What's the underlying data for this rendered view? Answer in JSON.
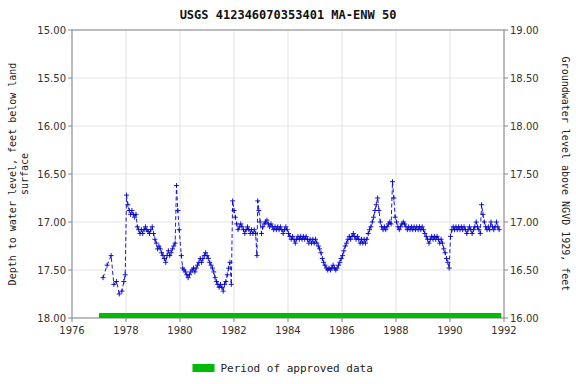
{
  "chart_data": {
    "type": "line",
    "title": "USGS 412346070353401 MA-ENW   50",
    "ylabel": "Depth to water level, feet below land\nsurface",
    "y2label": "Groundwater level above NGVD 1929, feet",
    "xlim": [
      1976,
      1992
    ],
    "xticks": [
      1976,
      1978,
      1980,
      1982,
      1984,
      1986,
      1988,
      1990,
      1992
    ],
    "ylim": [
      18.0,
      15.0
    ],
    "yticks": [
      {
        "value": 15.0,
        "label": "15.00"
      },
      {
        "value": 15.5,
        "label": "15.50"
      },
      {
        "value": 16.0,
        "label": "16.00"
      },
      {
        "value": 16.5,
        "label": "16.50"
      },
      {
        "value": 17.0,
        "label": "17.00"
      },
      {
        "value": 17.5,
        "label": "17.50"
      },
      {
        "value": 18.0,
        "label": "18.00"
      }
    ],
    "y2lim": [
      16.0,
      19.0
    ],
    "y2ticks": [
      {
        "value": 16.0,
        "label": "16.00"
      },
      {
        "value": 16.5,
        "label": "16.50"
      },
      {
        "value": 17.0,
        "label": "17.00"
      },
      {
        "value": 17.5,
        "label": "17.50"
      },
      {
        "value": 18.0,
        "label": "18.00"
      },
      {
        "value": 18.5,
        "label": "18.50"
      },
      {
        "value": 19.0,
        "label": "19.00"
      }
    ],
    "grid": true,
    "legend": "bottom",
    "series": [
      {
        "color": "#0000cc",
        "marker": "+",
        "line_style": "dashed",
        "x": [
          1977.15,
          1977.3,
          1977.45,
          1977.55,
          1977.65,
          1977.75,
          1977.85,
          1977.92,
          1977.97,
          1978.02,
          1978.07,
          1978.12,
          1978.17,
          1978.22,
          1978.27,
          1978.32,
          1978.37,
          1978.42,
          1978.47,
          1978.52,
          1978.57,
          1978.62,
          1978.67,
          1978.72,
          1978.77,
          1978.82,
          1978.87,
          1978.92,
          1978.97,
          1979.02,
          1979.07,
          1979.12,
          1979.17,
          1979.22,
          1979.27,
          1979.32,
          1979.37,
          1979.42,
          1979.47,
          1979.52,
          1979.57,
          1979.62,
          1979.67,
          1979.72,
          1979.77,
          1979.82,
          1979.87,
          1979.92,
          1979.97,
          1980.05,
          1980.1,
          1980.15,
          1980.2,
          1980.25,
          1980.3,
          1980.35,
          1980.4,
          1980.45,
          1980.5,
          1980.55,
          1980.6,
          1980.65,
          1980.7,
          1980.75,
          1980.8,
          1980.85,
          1980.9,
          1980.95,
          1981.0,
          1981.05,
          1981.1,
          1981.15,
          1981.2,
          1981.25,
          1981.3,
          1981.35,
          1981.4,
          1981.45,
          1981.5,
          1981.55,
          1981.6,
          1981.65,
          1981.7,
          1981.75,
          1981.8,
          1981.85,
          1981.9,
          1981.95,
          1982.0,
          1982.05,
          1982.1,
          1982.15,
          1982.2,
          1982.25,
          1982.3,
          1982.35,
          1982.4,
          1982.45,
          1982.5,
          1982.55,
          1982.6,
          1982.65,
          1982.7,
          1982.75,
          1982.8,
          1982.85,
          1982.88,
          1982.92,
          1982.97,
          1983.02,
          1983.07,
          1983.12,
          1983.17,
          1983.22,
          1983.27,
          1983.32,
          1983.37,
          1983.42,
          1983.47,
          1983.52,
          1983.57,
          1983.62,
          1983.67,
          1983.72,
          1983.77,
          1983.82,
          1983.87,
          1983.92,
          1983.97,
          1984.02,
          1984.07,
          1984.12,
          1984.17,
          1984.22,
          1984.27,
          1984.32,
          1984.37,
          1984.42,
          1984.47,
          1984.52,
          1984.57,
          1984.62,
          1984.67,
          1984.72,
          1984.77,
          1984.82,
          1984.87,
          1984.92,
          1984.97,
          1985.02,
          1985.07,
          1985.12,
          1985.17,
          1985.22,
          1985.27,
          1985.32,
          1985.37,
          1985.42,
          1985.47,
          1985.52,
          1985.57,
          1985.62,
          1985.67,
          1985.72,
          1985.77,
          1985.82,
          1985.87,
          1985.92,
          1985.97,
          1986.02,
          1986.07,
          1986.12,
          1986.17,
          1986.22,
          1986.27,
          1986.32,
          1986.37,
          1986.42,
          1986.47,
          1986.52,
          1986.57,
          1986.62,
          1986.67,
          1986.72,
          1986.77,
          1986.82,
          1986.87,
          1986.92,
          1986.97,
          1987.02,
          1987.07,
          1987.12,
          1987.17,
          1987.22,
          1987.27,
          1987.32,
          1987.37,
          1987.42,
          1987.47,
          1987.52,
          1987.57,
          1987.62,
          1987.67,
          1987.72,
          1987.77,
          1987.82,
          1987.87,
          1987.92,
          1987.97,
          1988.02,
          1988.07,
          1988.12,
          1988.17,
          1988.22,
          1988.27,
          1988.32,
          1988.37,
          1988.42,
          1988.47,
          1988.52,
          1988.57,
          1988.62,
          1988.67,
          1988.72,
          1988.77,
          1988.82,
          1988.87,
          1988.92,
          1988.97,
          1989.02,
          1989.07,
          1989.12,
          1989.17,
          1989.22,
          1989.27,
          1989.32,
          1989.37,
          1989.42,
          1989.47,
          1989.52,
          1989.57,
          1989.62,
          1989.67,
          1989.72,
          1989.77,
          1989.82,
          1989.87,
          1989.92,
          1989.97,
          1990.02,
          1990.07,
          1990.12,
          1990.17,
          1990.22,
          1990.27,
          1990.32,
          1990.37,
          1990.42,
          1990.47,
          1990.52,
          1990.57,
          1990.62,
          1990.67,
          1990.72,
          1990.77,
          1990.82,
          1990.87,
          1990.92,
          1990.97,
          1991.02,
          1991.07,
          1991.12,
          1991.17,
          1991.22,
          1991.27,
          1991.32,
          1991.37,
          1991.42,
          1991.47,
          1991.52,
          1991.57,
          1991.62,
          1991.67,
          1991.72,
          1991.77,
          1991.82
        ],
        "values": [
          17.58,
          17.45,
          17.35,
          17.65,
          17.62,
          17.75,
          17.72,
          17.62,
          17.55,
          16.72,
          16.82,
          16.88,
          16.92,
          16.88,
          16.92,
          16.95,
          16.92,
          17.05,
          17.08,
          17.12,
          17.08,
          17.12,
          17.08,
          17.05,
          17.08,
          17.1,
          17.12,
          17.08,
          17.05,
          17.12,
          17.18,
          17.22,
          17.28,
          17.25,
          17.28,
          17.32,
          17.35,
          17.38,
          17.42,
          17.35,
          17.3,
          17.35,
          17.32,
          17.28,
          17.25,
          17.22,
          16.62,
          16.88,
          17.08,
          17.35,
          17.48,
          17.5,
          17.52,
          17.55,
          17.58,
          17.55,
          17.52,
          17.5,
          17.48,
          17.52,
          17.48,
          17.45,
          17.42,
          17.38,
          17.42,
          17.38,
          17.35,
          17.32,
          17.35,
          17.38,
          17.42,
          17.45,
          17.48,
          17.52,
          17.58,
          17.62,
          17.65,
          17.68,
          17.65,
          17.68,
          17.72,
          17.65,
          17.62,
          17.55,
          17.48,
          17.42,
          17.65,
          16.78,
          16.88,
          16.95,
          17.02,
          17.08,
          17.05,
          17.02,
          17.05,
          17.08,
          17.12,
          17.08,
          17.05,
          17.08,
          17.12,
          17.08,
          17.12,
          17.08,
          17.12,
          17.35,
          16.78,
          16.88,
          17.0,
          17.12,
          17.05,
          17.02,
          17.0,
          16.98,
          17.02,
          17.05,
          17.02,
          17.05,
          17.08,
          17.05,
          17.08,
          17.05,
          17.08,
          17.05,
          17.08,
          17.12,
          17.08,
          17.05,
          17.08,
          17.12,
          17.15,
          17.18,
          17.15,
          17.18,
          17.22,
          17.18,
          17.15,
          17.18,
          17.15,
          17.18,
          17.15,
          17.18,
          17.15,
          17.18,
          17.22,
          17.18,
          17.22,
          17.18,
          17.22,
          17.18,
          17.22,
          17.25,
          17.28,
          17.32,
          17.38,
          17.42,
          17.45,
          17.48,
          17.5,
          17.48,
          17.5,
          17.48,
          17.45,
          17.48,
          17.5,
          17.48,
          17.45,
          17.42,
          17.38,
          17.35,
          17.3,
          17.25,
          17.22,
          17.18,
          17.15,
          17.18,
          17.15,
          17.12,
          17.15,
          17.18,
          17.15,
          17.18,
          17.22,
          17.18,
          17.22,
          17.18,
          17.22,
          17.18,
          17.12,
          17.08,
          17.05,
          17.0,
          16.95,
          16.88,
          16.82,
          16.75,
          16.88,
          17.0,
          17.05,
          17.08,
          17.05,
          17.08,
          17.05,
          17.02,
          17.0,
          17.02,
          16.58,
          16.75,
          16.95,
          17.0,
          17.05,
          17.08,
          17.05,
          17.02,
          17.0,
          17.02,
          17.05,
          17.08,
          17.05,
          17.08,
          17.05,
          17.08,
          17.05,
          17.08,
          17.05,
          17.08,
          17.05,
          17.08,
          17.05,
          17.08,
          17.12,
          17.15,
          17.18,
          17.22,
          17.18,
          17.15,
          17.18,
          17.15,
          17.18,
          17.15,
          17.18,
          17.22,
          17.18,
          17.22,
          17.28,
          17.32,
          17.38,
          17.42,
          17.48,
          17.15,
          17.08,
          17.05,
          17.08,
          17.05,
          17.08,
          17.05,
          17.08,
          17.05,
          17.08,
          17.05,
          17.08,
          17.12,
          17.08,
          17.05,
          17.08,
          17.12,
          17.08,
          17.05,
          17.0,
          17.05,
          17.08,
          17.12,
          16.82,
          16.92,
          17.0,
          17.05,
          17.08,
          17.05,
          17.08,
          17.0,
          17.05,
          17.08,
          17.05,
          17.0,
          17.05,
          17.08
        ]
      },
      {
        "name": "Period of approved data",
        "color": "#00bb00",
        "line_style": "solid",
        "x": [
          1977.0,
          1991.9
        ],
        "values": [
          18.0,
          18.0
        ]
      }
    ]
  }
}
